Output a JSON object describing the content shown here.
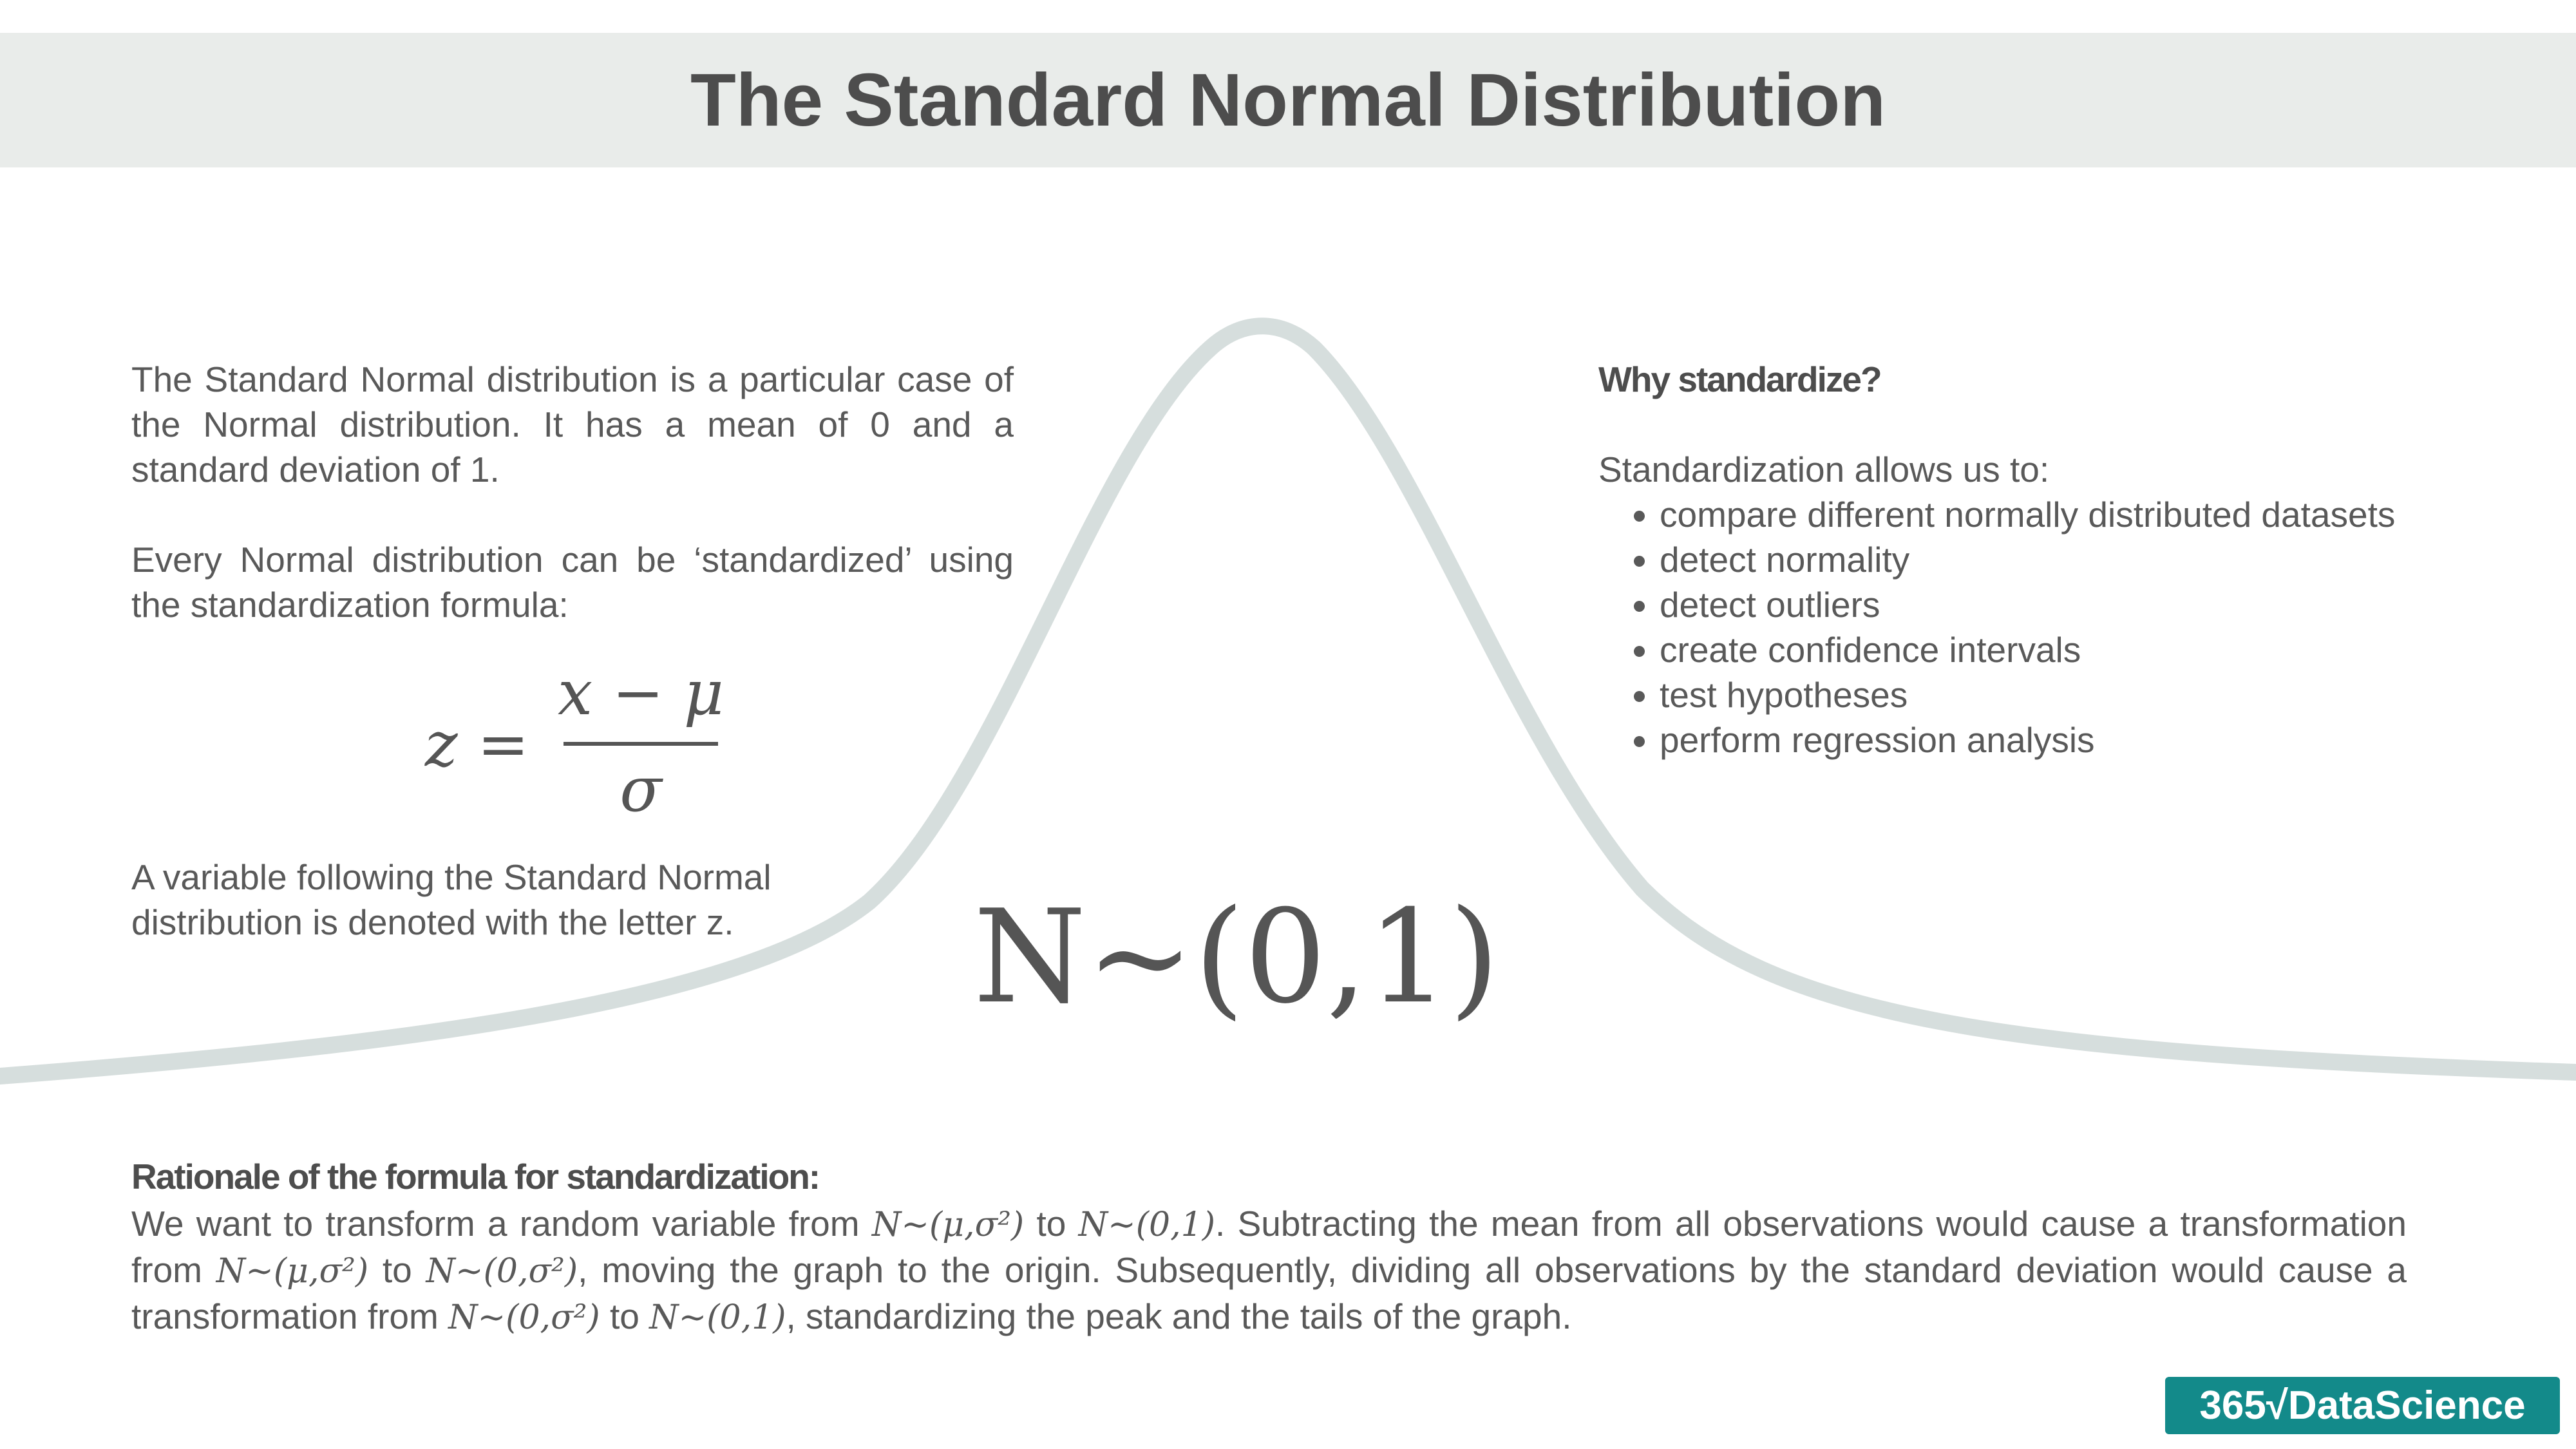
{
  "header": {
    "title": "The Standard Normal Distribution"
  },
  "left": {
    "paragraphs": [
      "The Standard Normal distribution is a particular case of the Normal distribution. It has a mean of 0 and a standard deviation of 1.",
      "Every Normal distribution can be ‘standardized’ using the standardization formula:",
      "A variable following the Standard Normal distribution is denoted with the letter z."
    ],
    "formula": {
      "lhs": "z =",
      "numerator": "x − μ",
      "denominator": "σ"
    }
  },
  "notation": "N~(0,1)",
  "right": {
    "heading": "Why standardize?",
    "intro": "Standardization allows us to:",
    "bullets": [
      "compare different normally distributed datasets",
      "detect normality",
      "detect outliers",
      "create confidence intervals",
      "test hypotheses",
      "perform regression analysis"
    ]
  },
  "rationale": {
    "heading": "Rationale of the formula for standardization:",
    "parts": [
      "We want to transform a random variable from ",
      "N~(μ,σ²)",
      " to ",
      "N~(0,1)",
      ". Subtracting the mean from all observations would cause a transformation from ",
      "N~(μ,σ²)",
      " to ",
      "N~(0,σ²)",
      ", moving the graph to the origin. Subsequently, dividing all observations by the standard deviation would cause a transformation from ",
      "N~(0,σ²)",
      " to ",
      "N~(0,1)",
      ", standardizing the peak and the tails of the graph."
    ]
  },
  "logo": "365√DataScience"
}
